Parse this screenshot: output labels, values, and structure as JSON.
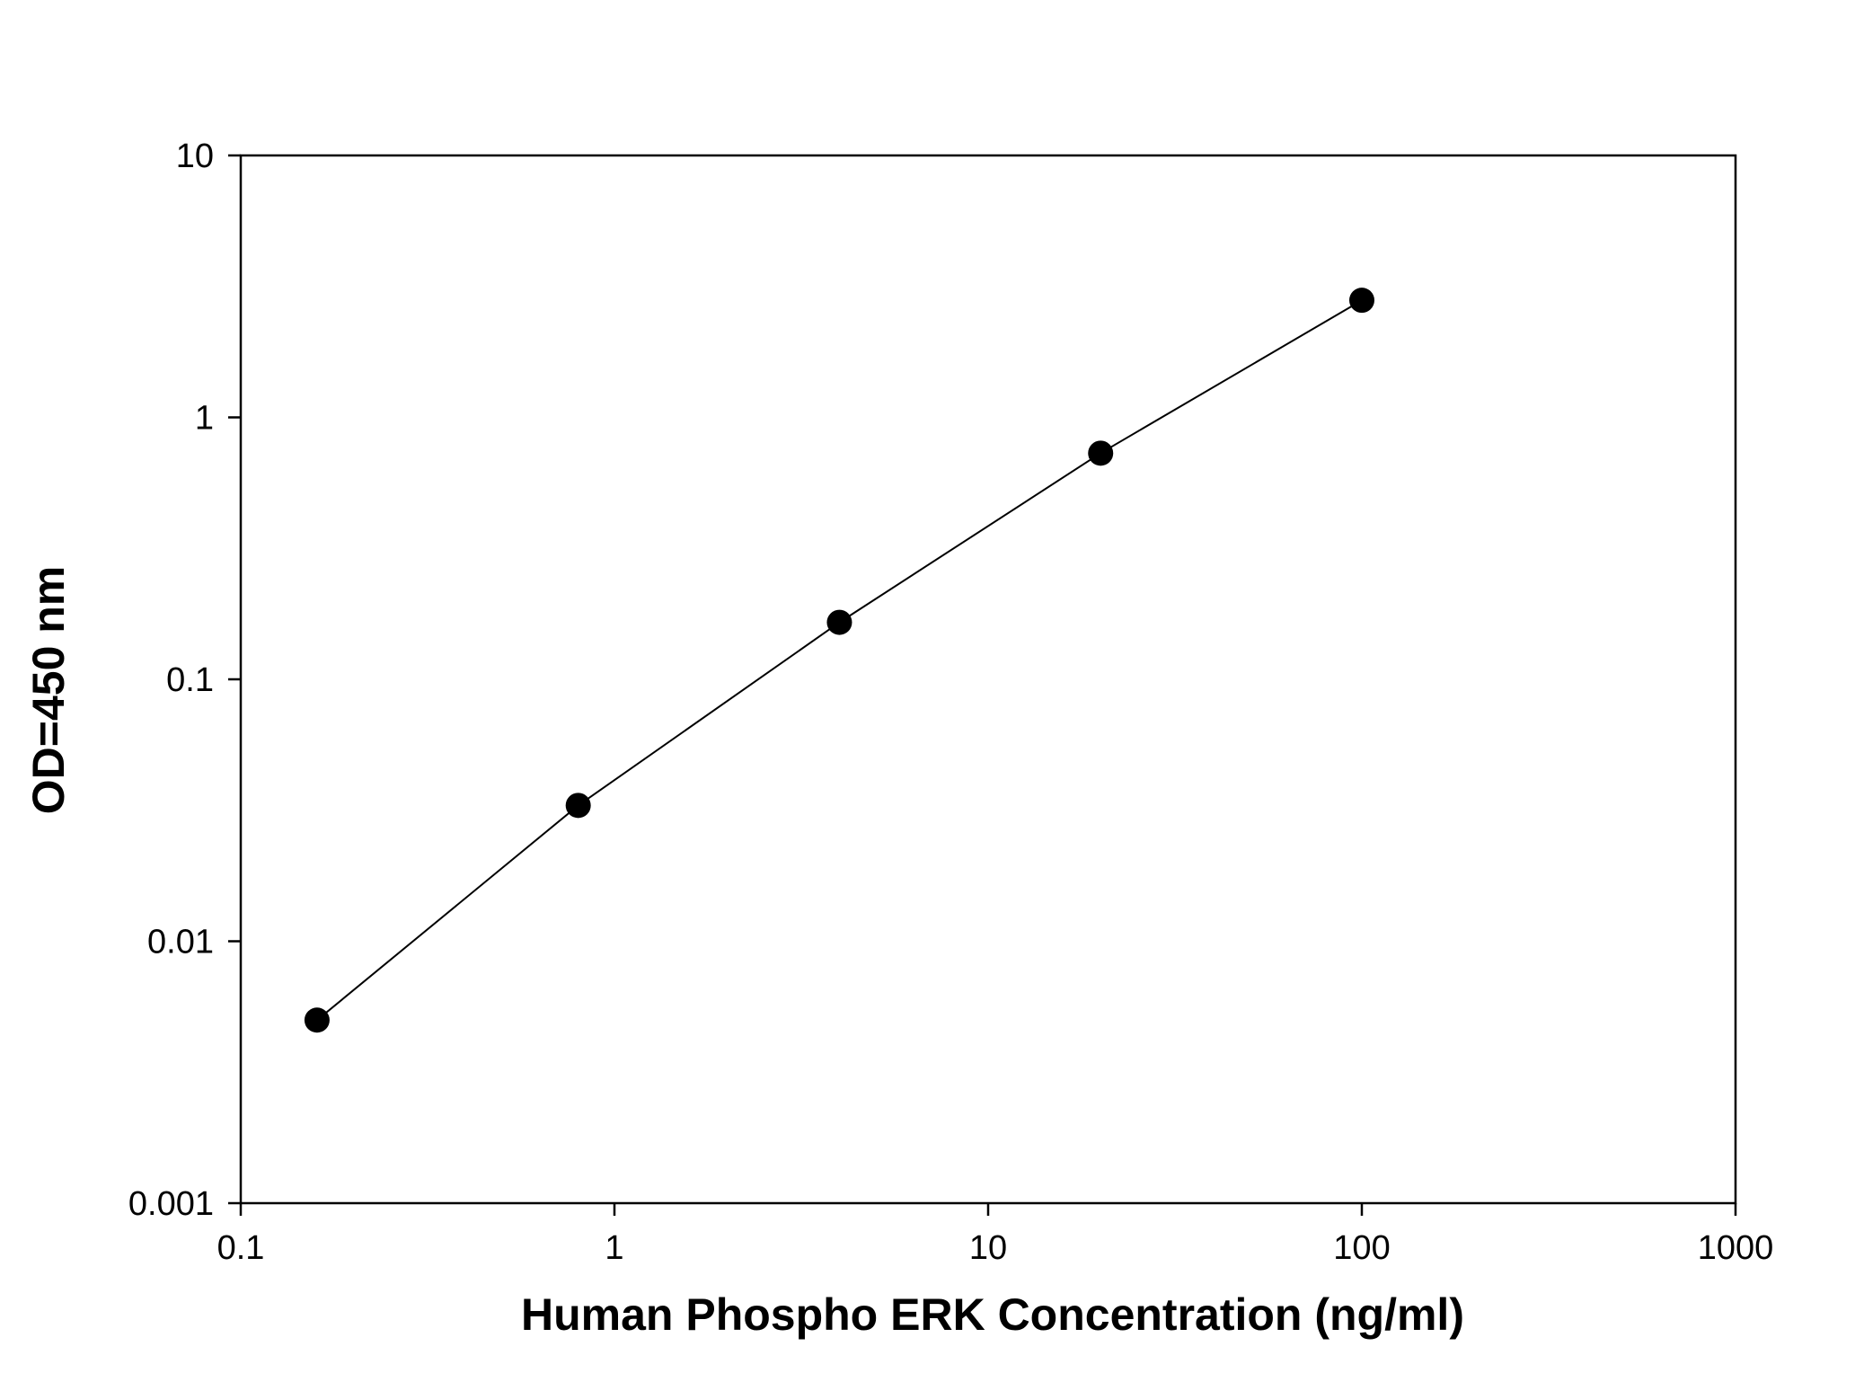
{
  "chart_data": {
    "type": "line",
    "title": "",
    "xlabel": "Human Phospho ERK Concentration (ng/ml)",
    "ylabel": "OD=450 nm",
    "xscale": "log",
    "yscale": "log",
    "xlim": [
      0.1,
      1000
    ],
    "ylim": [
      0.001,
      10
    ],
    "x_ticks": [
      0.1,
      1,
      10,
      100,
      1000
    ],
    "x_tick_labels": [
      "0.1",
      "1",
      "10",
      "100",
      "1000"
    ],
    "y_ticks": [
      0.001,
      0.01,
      0.1,
      1,
      10
    ],
    "y_tick_labels": [
      "0.001",
      "0.01",
      "0.1",
      "1",
      "10"
    ],
    "grid": false,
    "legend": "none",
    "series": [
      {
        "x": [
          0.16,
          0.8,
          4,
          20,
          100
        ],
        "y": [
          0.005,
          0.033,
          0.165,
          0.73,
          2.8
        ],
        "marker": "filled-circle",
        "color": "#000000"
      }
    ]
  }
}
